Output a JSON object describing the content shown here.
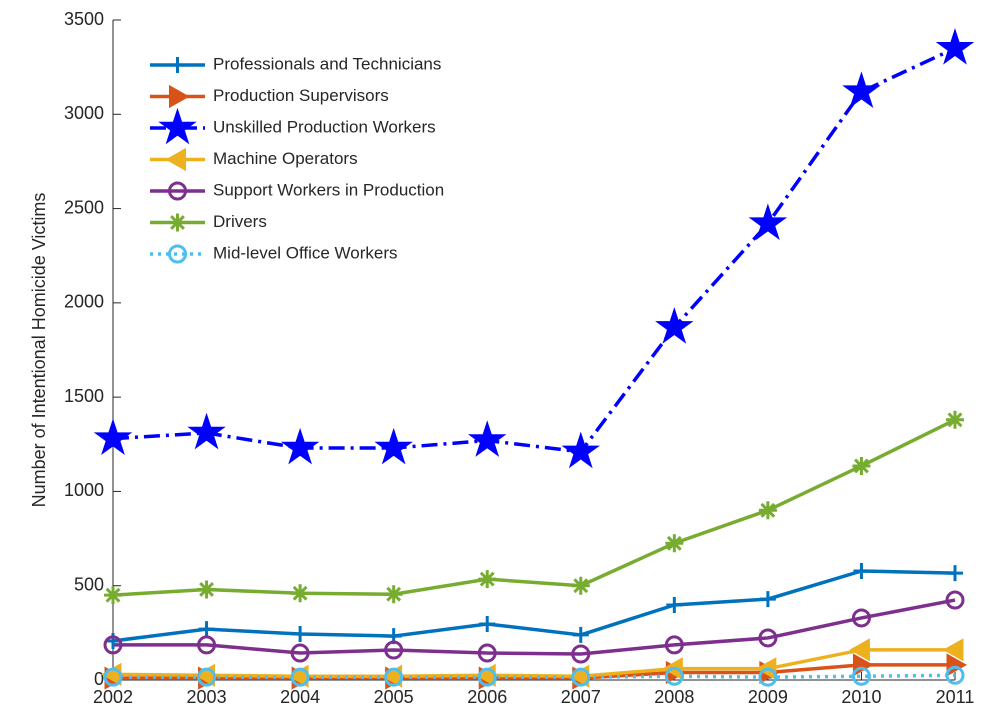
{
  "chart_data": {
    "type": "line",
    "ylabel": "Number of Intentional Homicide Victims",
    "x": [
      2002,
      2003,
      2004,
      2005,
      2006,
      2007,
      2008,
      2009,
      2010,
      2011
    ],
    "xlim": [
      2002,
      2011
    ],
    "xticks": [
      2002,
      2003,
      2004,
      2005,
      2006,
      2007,
      2008,
      2009,
      2010,
      2011
    ],
    "ylim": [
      0,
      3500
    ],
    "yticks": [
      0,
      500,
      1000,
      1500,
      2000,
      2500,
      3000,
      3500
    ],
    "legend": "northwest",
    "series": [
      {
        "name": "Professionals and Technicians",
        "color": "#0072BD",
        "marker": "plus",
        "linestyle": "solid",
        "values": [
          207,
          270,
          244,
          233,
          297,
          239,
          398,
          429,
          578,
          567
        ]
      },
      {
        "name": "Production Supervisors",
        "color": "#D95319",
        "marker": "triangle-right",
        "linestyle": "solid",
        "values": [
          10,
          10,
          10,
          10,
          10,
          10,
          40,
          40,
          80,
          80
        ]
      },
      {
        "name": "Unskilled Production Workers",
        "color": "#0000FF",
        "marker": "star",
        "linestyle": "dashdot",
        "values": [
          1280,
          1310,
          1230,
          1230,
          1270,
          1210,
          1870,
          2420,
          3120,
          3350
        ]
      },
      {
        "name": "Machine Operators",
        "color": "#EDB120",
        "marker": "triangle-left",
        "linestyle": "solid",
        "values": [
          30,
          25,
          20,
          20,
          25,
          20,
          60,
          60,
          160,
          160
        ]
      },
      {
        "name": "Support Workers in Production",
        "color": "#7E2F8E",
        "marker": "circle",
        "linestyle": "solid",
        "values": [
          186,
          186,
          143,
          159,
          143,
          138,
          186,
          223,
          329,
          424
        ]
      },
      {
        "name": "Drivers",
        "color": "#77AC30",
        "marker": "asterisk",
        "linestyle": "solid",
        "values": [
          450,
          480,
          460,
          455,
          535,
          500,
          725,
          900,
          1135,
          1380
        ]
      },
      {
        "name": "Mid-level Office Workers",
        "color": "#4DBEEE",
        "marker": "circle",
        "linestyle": "dotted",
        "values": [
          15,
          15,
          15,
          15,
          15,
          15,
          20,
          15,
          20,
          25
        ]
      }
    ]
  }
}
